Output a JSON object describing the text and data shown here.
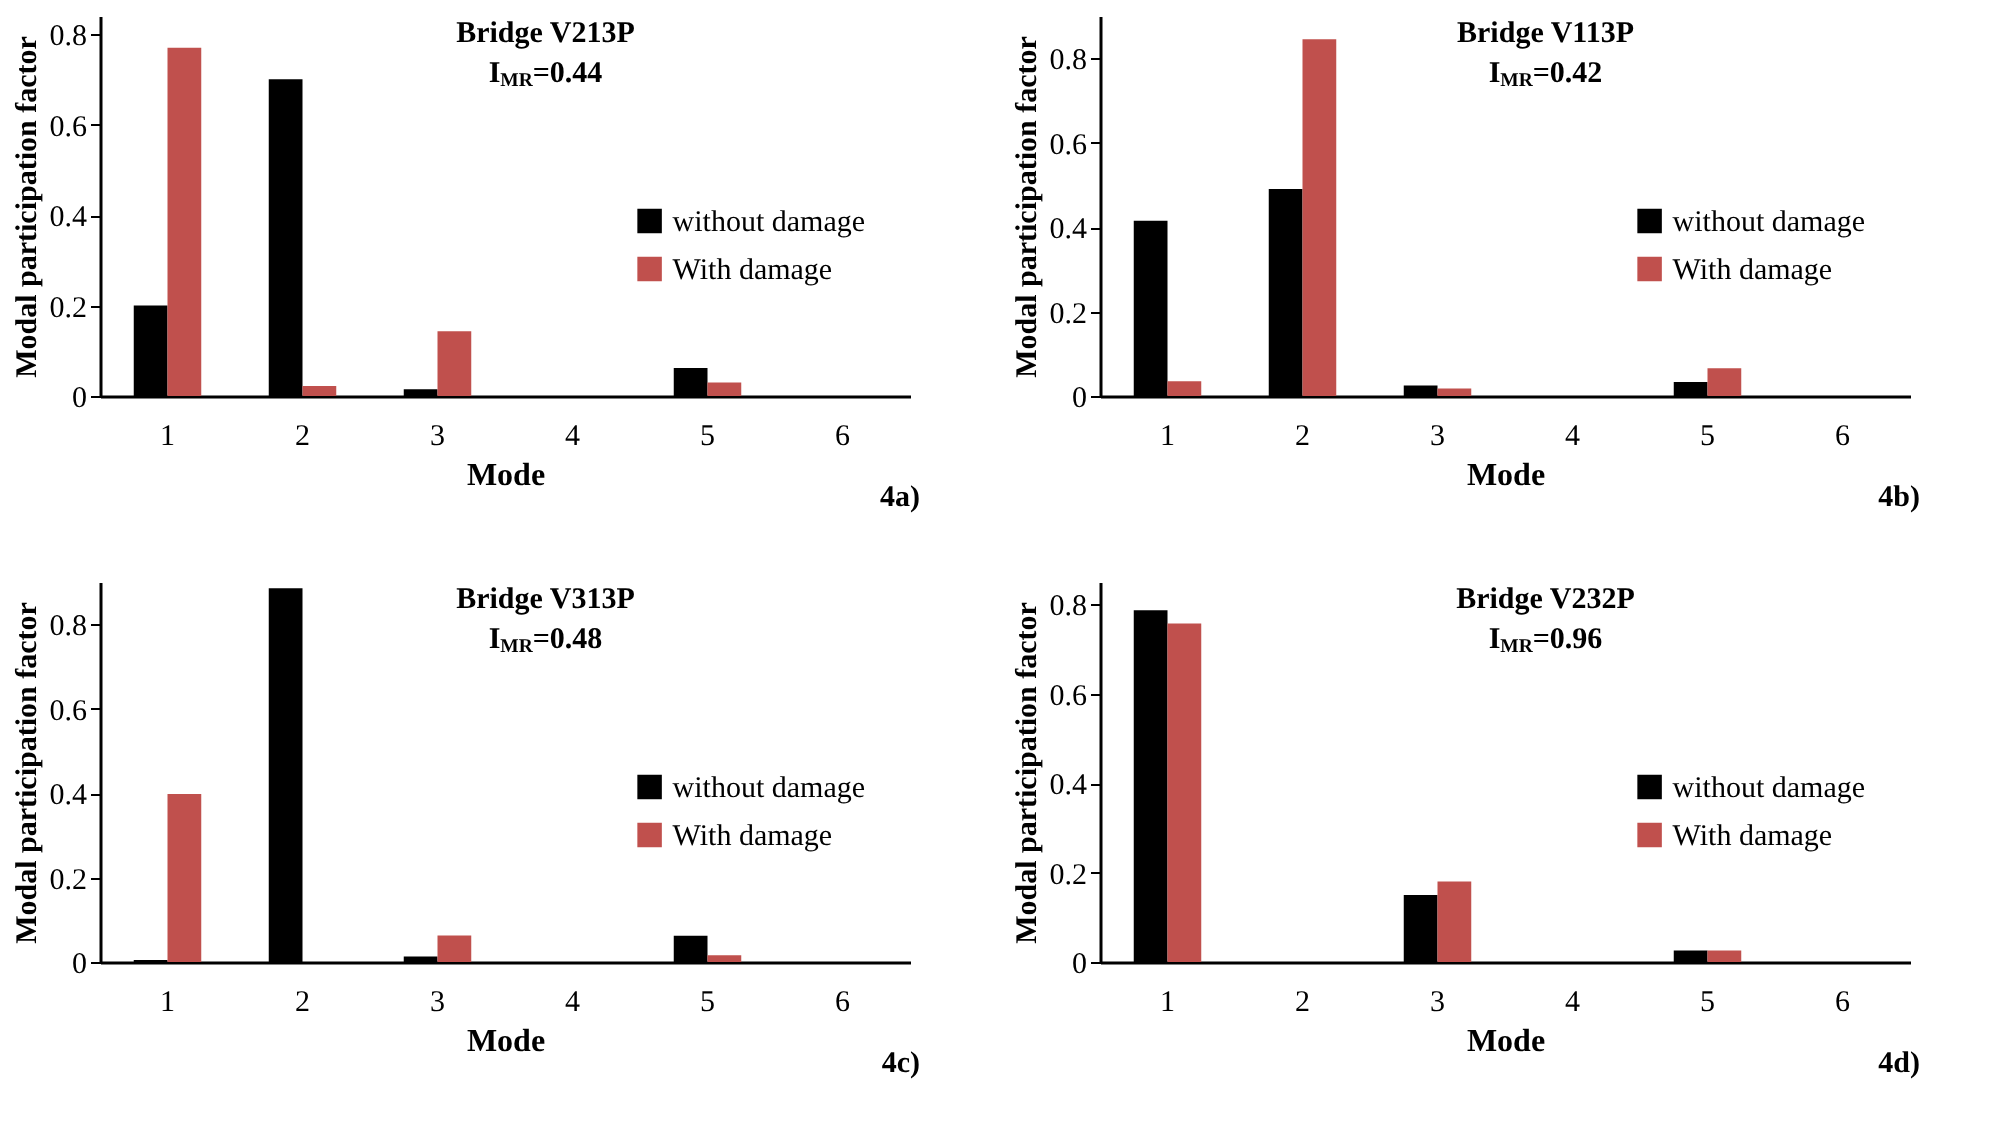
{
  "chart_data": [
    {
      "type": "bar",
      "title": "Bridge V213P",
      "subtitle": "I$_{MR}$=0.44",
      "xlabel": "Mode",
      "ylabel": "Modal participation factor",
      "annotations": [
        "4a)"
      ],
      "categories": [
        "1",
        "2",
        "3",
        "4",
        "5",
        "6"
      ],
      "ylim": [
        0,
        0.84
      ],
      "yticks": [
        0,
        0.2,
        0.4,
        0.6,
        0.8
      ],
      "grid": false,
      "legend": "right",
      "series": [
        {
          "name": "without damage",
          "color": "#000000",
          "values": [
            0.2,
            0.7,
            0.015,
            0,
            0.062,
            0
          ]
        },
        {
          "name": "With damage",
          "color": "#c0504d",
          "values": [
            0.77,
            0.022,
            0.143,
            0,
            0.03,
            0
          ]
        }
      ]
    },
    {
      "type": "bar",
      "title": "Bridge V113P",
      "subtitle": "I$_{MR}$=0.42",
      "xlabel": "Mode",
      "ylabel": "Modal participation factor",
      "annotations": [
        "4b)"
      ],
      "categories": [
        "1",
        "2",
        "3",
        "4",
        "5",
        "6"
      ],
      "ylim": [
        0,
        0.9
      ],
      "yticks": [
        0,
        0.2,
        0.4,
        0.6,
        0.8
      ],
      "grid": false,
      "legend": "right",
      "series": [
        {
          "name": "without damage",
          "color": "#000000",
          "values": [
            0.415,
            0.49,
            0.025,
            0,
            0.033,
            0
          ]
        },
        {
          "name": "With damage",
          "color": "#c0504d",
          "values": [
            0.035,
            0.845,
            0.018,
            0,
            0.066,
            0
          ]
        }
      ]
    },
    {
      "type": "bar",
      "title": "Bridge V313P",
      "subtitle": "I$_{MR}$=0.48",
      "xlabel": "Mode",
      "ylabel": "Modal participation factor",
      "annotations": [
        "4c)"
      ],
      "categories": [
        "1",
        "2",
        "3",
        "4",
        "5",
        "6"
      ],
      "ylim": [
        0,
        0.9
      ],
      "yticks": [
        0,
        0.2,
        0.4,
        0.6,
        0.8
      ],
      "grid": false,
      "legend": "right",
      "series": [
        {
          "name": "without damage",
          "color": "#000000",
          "values": [
            0.005,
            0.885,
            0.013,
            0,
            0.062,
            0
          ]
        },
        {
          "name": "With damage",
          "color": "#c0504d",
          "values": [
            0.398,
            0,
            0.063,
            0,
            0.016,
            0
          ]
        }
      ]
    },
    {
      "type": "bar",
      "title": "Bridge V232P",
      "subtitle": "I$_{MR}$=0.96",
      "xlabel": "Mode",
      "ylabel": "Modal participation factor",
      "annotations": [
        "4d)"
      ],
      "categories": [
        "1",
        "2",
        "3",
        "4",
        "5",
        "6"
      ],
      "ylim": [
        0,
        0.85
      ],
      "yticks": [
        0,
        0.2,
        0.4,
        0.6,
        0.8
      ],
      "grid": false,
      "legend": "right",
      "series": [
        {
          "name": "without damage",
          "color": "#000000",
          "values": [
            0.787,
            0,
            0.15,
            0,
            0.026,
            0
          ]
        },
        {
          "name": "With damage",
          "color": "#c0504d",
          "values": [
            0.757,
            0,
            0.18,
            0,
            0.026,
            0
          ]
        }
      ]
    }
  ]
}
